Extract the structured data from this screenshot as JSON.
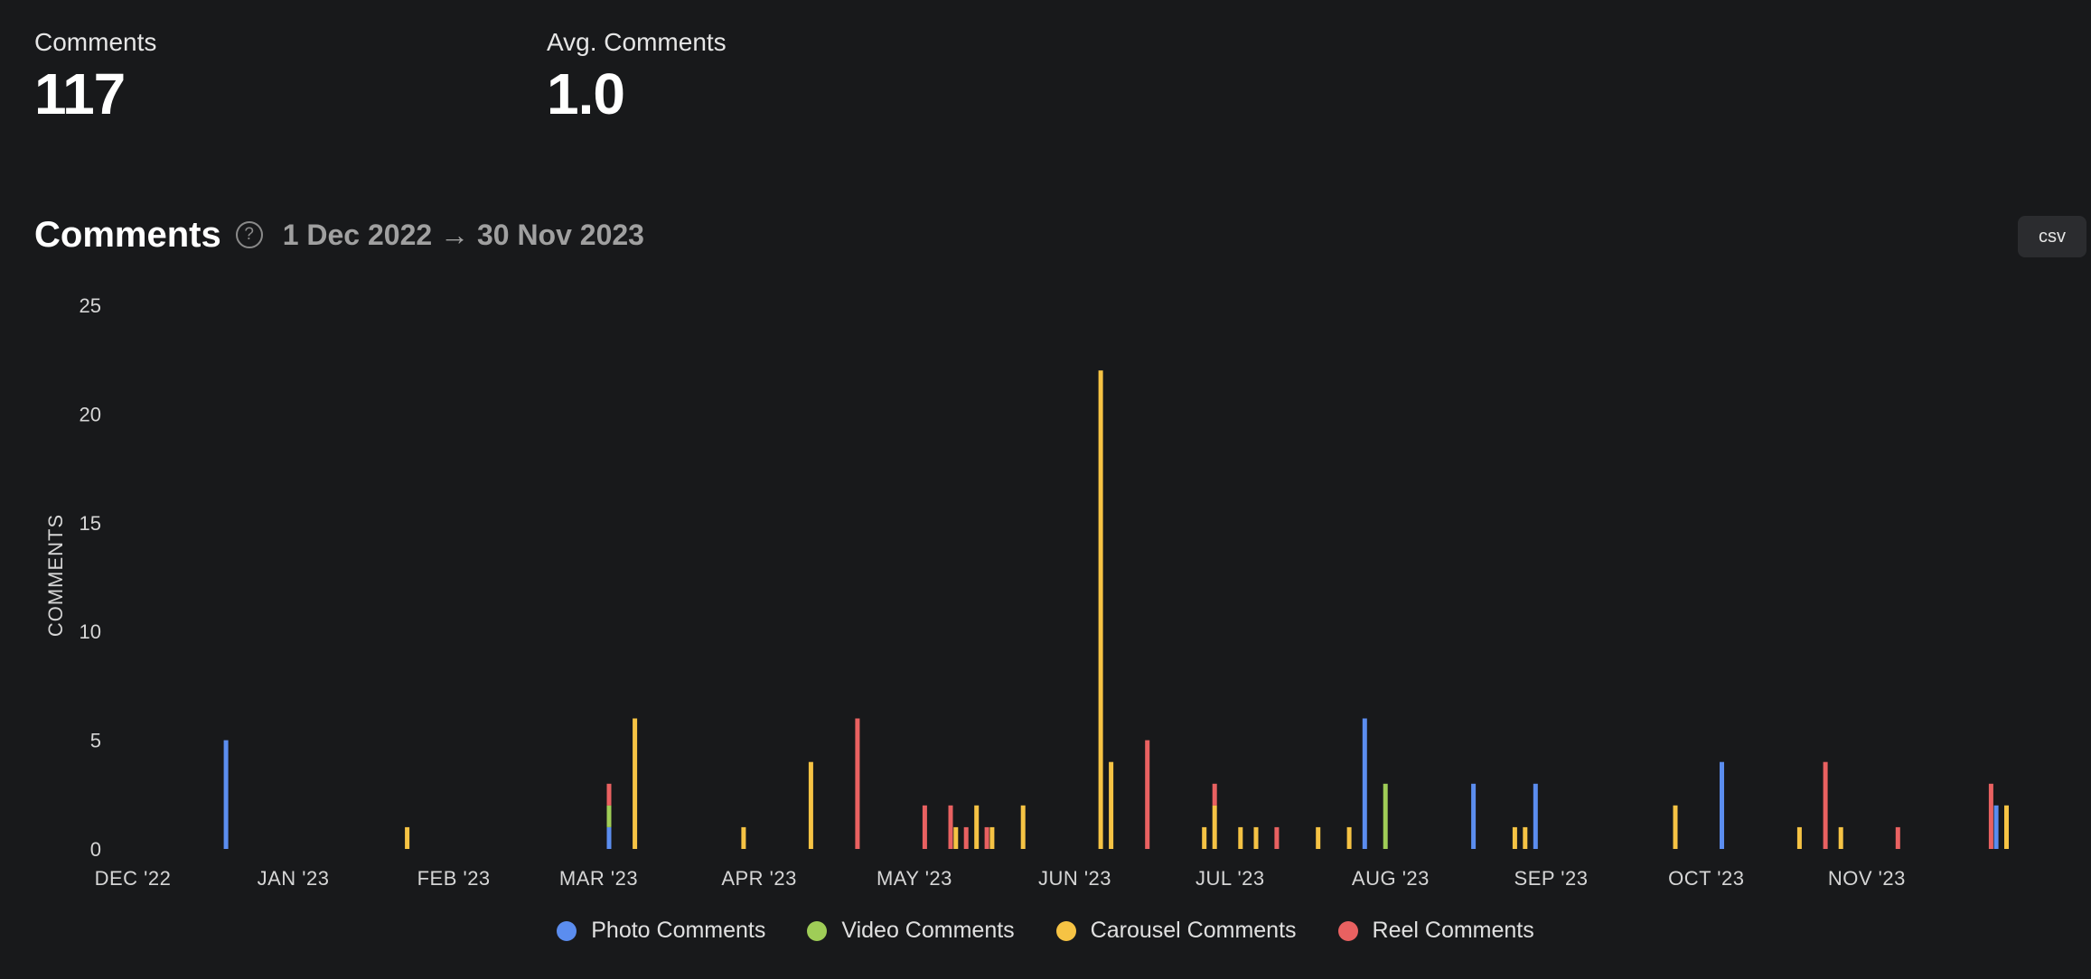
{
  "stats": {
    "comments": {
      "label": "Comments",
      "value": "117"
    },
    "avg": {
      "label": "Avg. Comments",
      "value": "1.0"
    }
  },
  "header": {
    "title": "Comments",
    "help_icon": "question-circle-icon",
    "help_glyph": "?",
    "date_range": "1 Dec 2022 → 30 Nov 2023",
    "csv_label": "csv"
  },
  "colors": {
    "photo": "#5b8def",
    "video": "#9fcd57",
    "carousel": "#f6c344",
    "reel": "#e96161"
  },
  "chart_data": {
    "type": "bar",
    "stacked": true,
    "ylabel": "COMMENTS",
    "ylim": [
      0,
      25
    ],
    "yticks": [
      0,
      5,
      10,
      15,
      20,
      25
    ],
    "xlim": [
      "2022-12-01",
      "2023-11-30"
    ],
    "xticks": [
      {
        "date": "2022-12-01",
        "label": "DEC '22"
      },
      {
        "date": "2023-01-01",
        "label": "JAN '23"
      },
      {
        "date": "2023-02-01",
        "label": "FEB '23"
      },
      {
        "date": "2023-03-01",
        "label": "MAR '23"
      },
      {
        "date": "2023-04-01",
        "label": "APR '23"
      },
      {
        "date": "2023-05-01",
        "label": "MAY '23"
      },
      {
        "date": "2023-06-01",
        "label": "JUN '23"
      },
      {
        "date": "2023-07-01",
        "label": "JUL '23"
      },
      {
        "date": "2023-08-01",
        "label": "AUG '23"
      },
      {
        "date": "2023-09-01",
        "label": "SEP '23"
      },
      {
        "date": "2023-10-01",
        "label": "OCT '23"
      },
      {
        "date": "2023-11-01",
        "label": "NOV '23"
      }
    ],
    "legend": [
      "Photo Comments",
      "Video Comments",
      "Carousel Comments",
      "Reel Comments"
    ],
    "series": [
      {
        "name": "Photo Comments",
        "color": "#5b8def",
        "points": [
          {
            "x": "2022-12-19",
            "y": 5
          },
          {
            "x": "2023-03-03",
            "y": 1
          },
          {
            "x": "2023-07-27",
            "y": 6
          },
          {
            "x": "2023-08-17",
            "y": 3
          },
          {
            "x": "2023-08-29",
            "y": 3
          },
          {
            "x": "2023-10-04",
            "y": 4
          },
          {
            "x": "2023-11-26",
            "y": 2
          }
        ]
      },
      {
        "name": "Video Comments",
        "color": "#9fcd57",
        "points": [
          {
            "x": "2023-03-03",
            "y": 1
          },
          {
            "x": "2023-07-31",
            "y": 3
          }
        ]
      },
      {
        "name": "Carousel Comments",
        "color": "#f6c344",
        "points": [
          {
            "x": "2023-01-23",
            "y": 1
          },
          {
            "x": "2023-03-08",
            "y": 6
          },
          {
            "x": "2023-03-29",
            "y": 1
          },
          {
            "x": "2023-04-11",
            "y": 4
          },
          {
            "x": "2023-05-09",
            "y": 1
          },
          {
            "x": "2023-05-13",
            "y": 2
          },
          {
            "x": "2023-05-16",
            "y": 1
          },
          {
            "x": "2023-05-22",
            "y": 2
          },
          {
            "x": "2023-06-06",
            "y": 22
          },
          {
            "x": "2023-06-08",
            "y": 4
          },
          {
            "x": "2023-06-26",
            "y": 1
          },
          {
            "x": "2023-06-28",
            "y": 2
          },
          {
            "x": "2023-07-03",
            "y": 1
          },
          {
            "x": "2023-07-06",
            "y": 1
          },
          {
            "x": "2023-07-18",
            "y": 1
          },
          {
            "x": "2023-07-24",
            "y": 1
          },
          {
            "x": "2023-08-25",
            "y": 1
          },
          {
            "x": "2023-08-27",
            "y": 1
          },
          {
            "x": "2023-09-25",
            "y": 2
          },
          {
            "x": "2023-10-19",
            "y": 1
          },
          {
            "x": "2023-10-27",
            "y": 1
          },
          {
            "x": "2023-11-28",
            "y": 2
          }
        ]
      },
      {
        "name": "Reel Comments",
        "color": "#e96161",
        "points": [
          {
            "x": "2023-03-03",
            "y": 1
          },
          {
            "x": "2023-04-20",
            "y": 6
          },
          {
            "x": "2023-05-03",
            "y": 2
          },
          {
            "x": "2023-05-08",
            "y": 2
          },
          {
            "x": "2023-05-11",
            "y": 1
          },
          {
            "x": "2023-05-15",
            "y": 1
          },
          {
            "x": "2023-06-15",
            "y": 5
          },
          {
            "x": "2023-06-28",
            "y": 1
          },
          {
            "x": "2023-07-10",
            "y": 1
          },
          {
            "x": "2023-10-24",
            "y": 4
          },
          {
            "x": "2023-11-07",
            "y": 1
          },
          {
            "x": "2023-11-25",
            "y": 3
          }
        ]
      }
    ]
  }
}
